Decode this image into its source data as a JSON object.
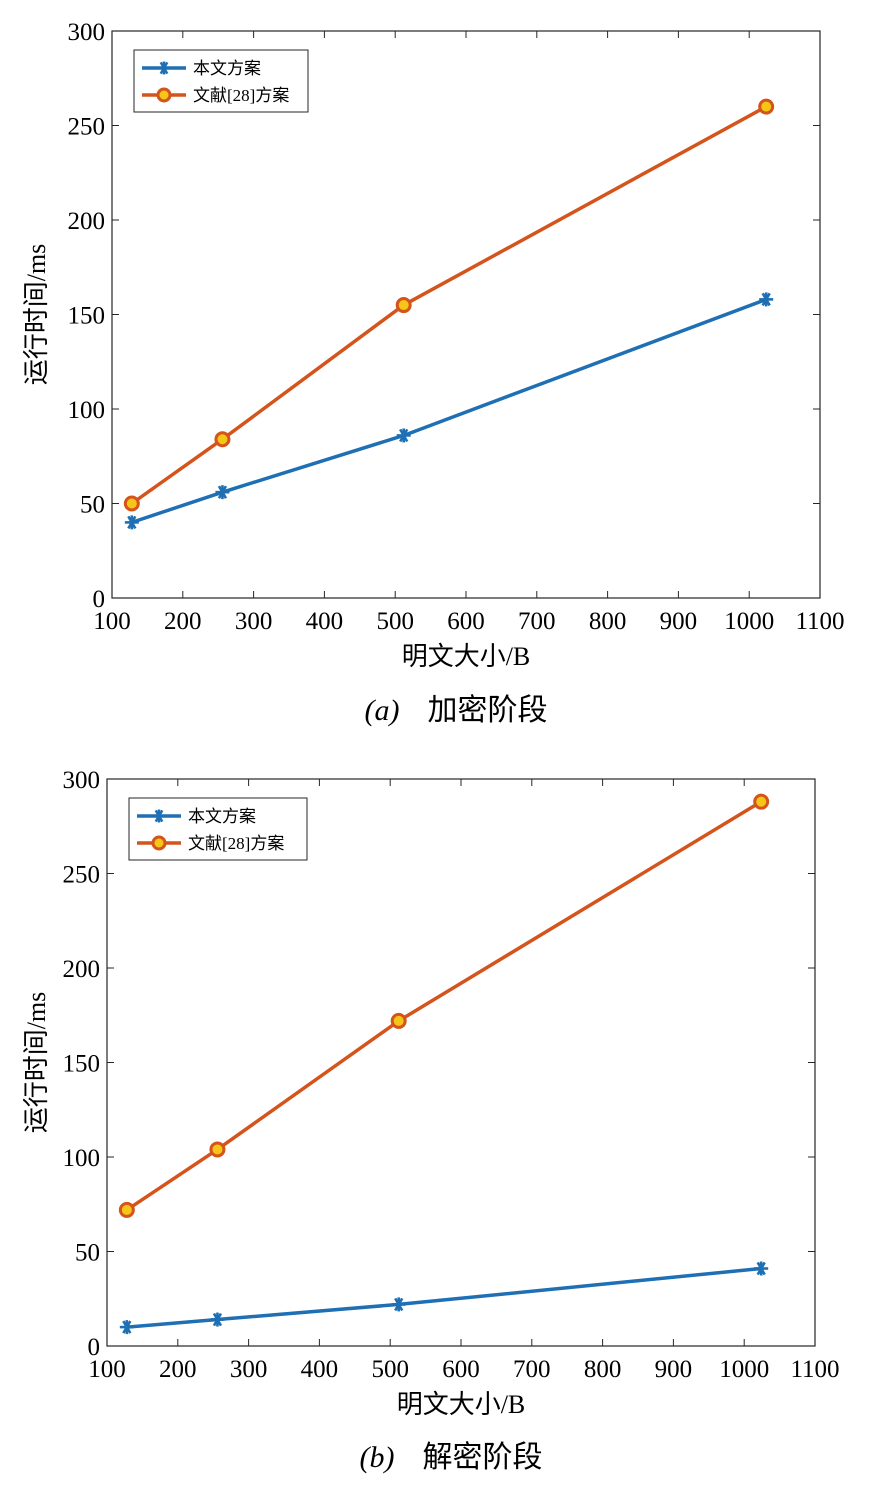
{
  "colors": {
    "blue": "#1f6fb4",
    "orange": "#d4541c",
    "marker_fill": "#f5c518"
  },
  "chart_data": [
    {
      "type": "line",
      "caption_label": "(a)",
      "caption_text": "加密阶段",
      "xlabel": "明文大小/B",
      "ylabel": "运行时间/ms",
      "xlim": [
        100,
        1100
      ],
      "ylim": [
        0,
        300
      ],
      "xticks": [
        100,
        200,
        300,
        400,
        500,
        600,
        700,
        800,
        900,
        1000,
        1100
      ],
      "yticks": [
        0,
        50,
        100,
        150,
        200,
        250,
        300
      ],
      "legend_position": "top-left",
      "series": [
        {
          "name": "本文方案",
          "marker": "asterisk",
          "color": "blue",
          "x": [
            128,
            256,
            512,
            1024
          ],
          "y": [
            40,
            56,
            86,
            158
          ]
        },
        {
          "name": "文献[28]方案",
          "marker": "circle",
          "color": "orange",
          "x": [
            128,
            256,
            512,
            1024
          ],
          "y": [
            50,
            84,
            155,
            260
          ]
        }
      ]
    },
    {
      "type": "line",
      "caption_label": "(b)",
      "caption_text": "解密阶段",
      "xlabel": "明文大小/B",
      "ylabel": "运行时间/ms",
      "xlim": [
        100,
        1100
      ],
      "ylim": [
        0,
        300
      ],
      "xticks": [
        100,
        200,
        300,
        400,
        500,
        600,
        700,
        800,
        900,
        1000,
        1100
      ],
      "yticks": [
        0,
        50,
        100,
        150,
        200,
        250,
        300
      ],
      "legend_position": "top-left",
      "series": [
        {
          "name": "本文方案",
          "marker": "asterisk",
          "color": "blue",
          "x": [
            128,
            256,
            512,
            1024
          ],
          "y": [
            10,
            14,
            22,
            41
          ]
        },
        {
          "name": "文献[28]方案",
          "marker": "circle",
          "color": "orange",
          "x": [
            128,
            256,
            512,
            1024
          ],
          "y": [
            72,
            104,
            172,
            288
          ]
        }
      ]
    }
  ]
}
